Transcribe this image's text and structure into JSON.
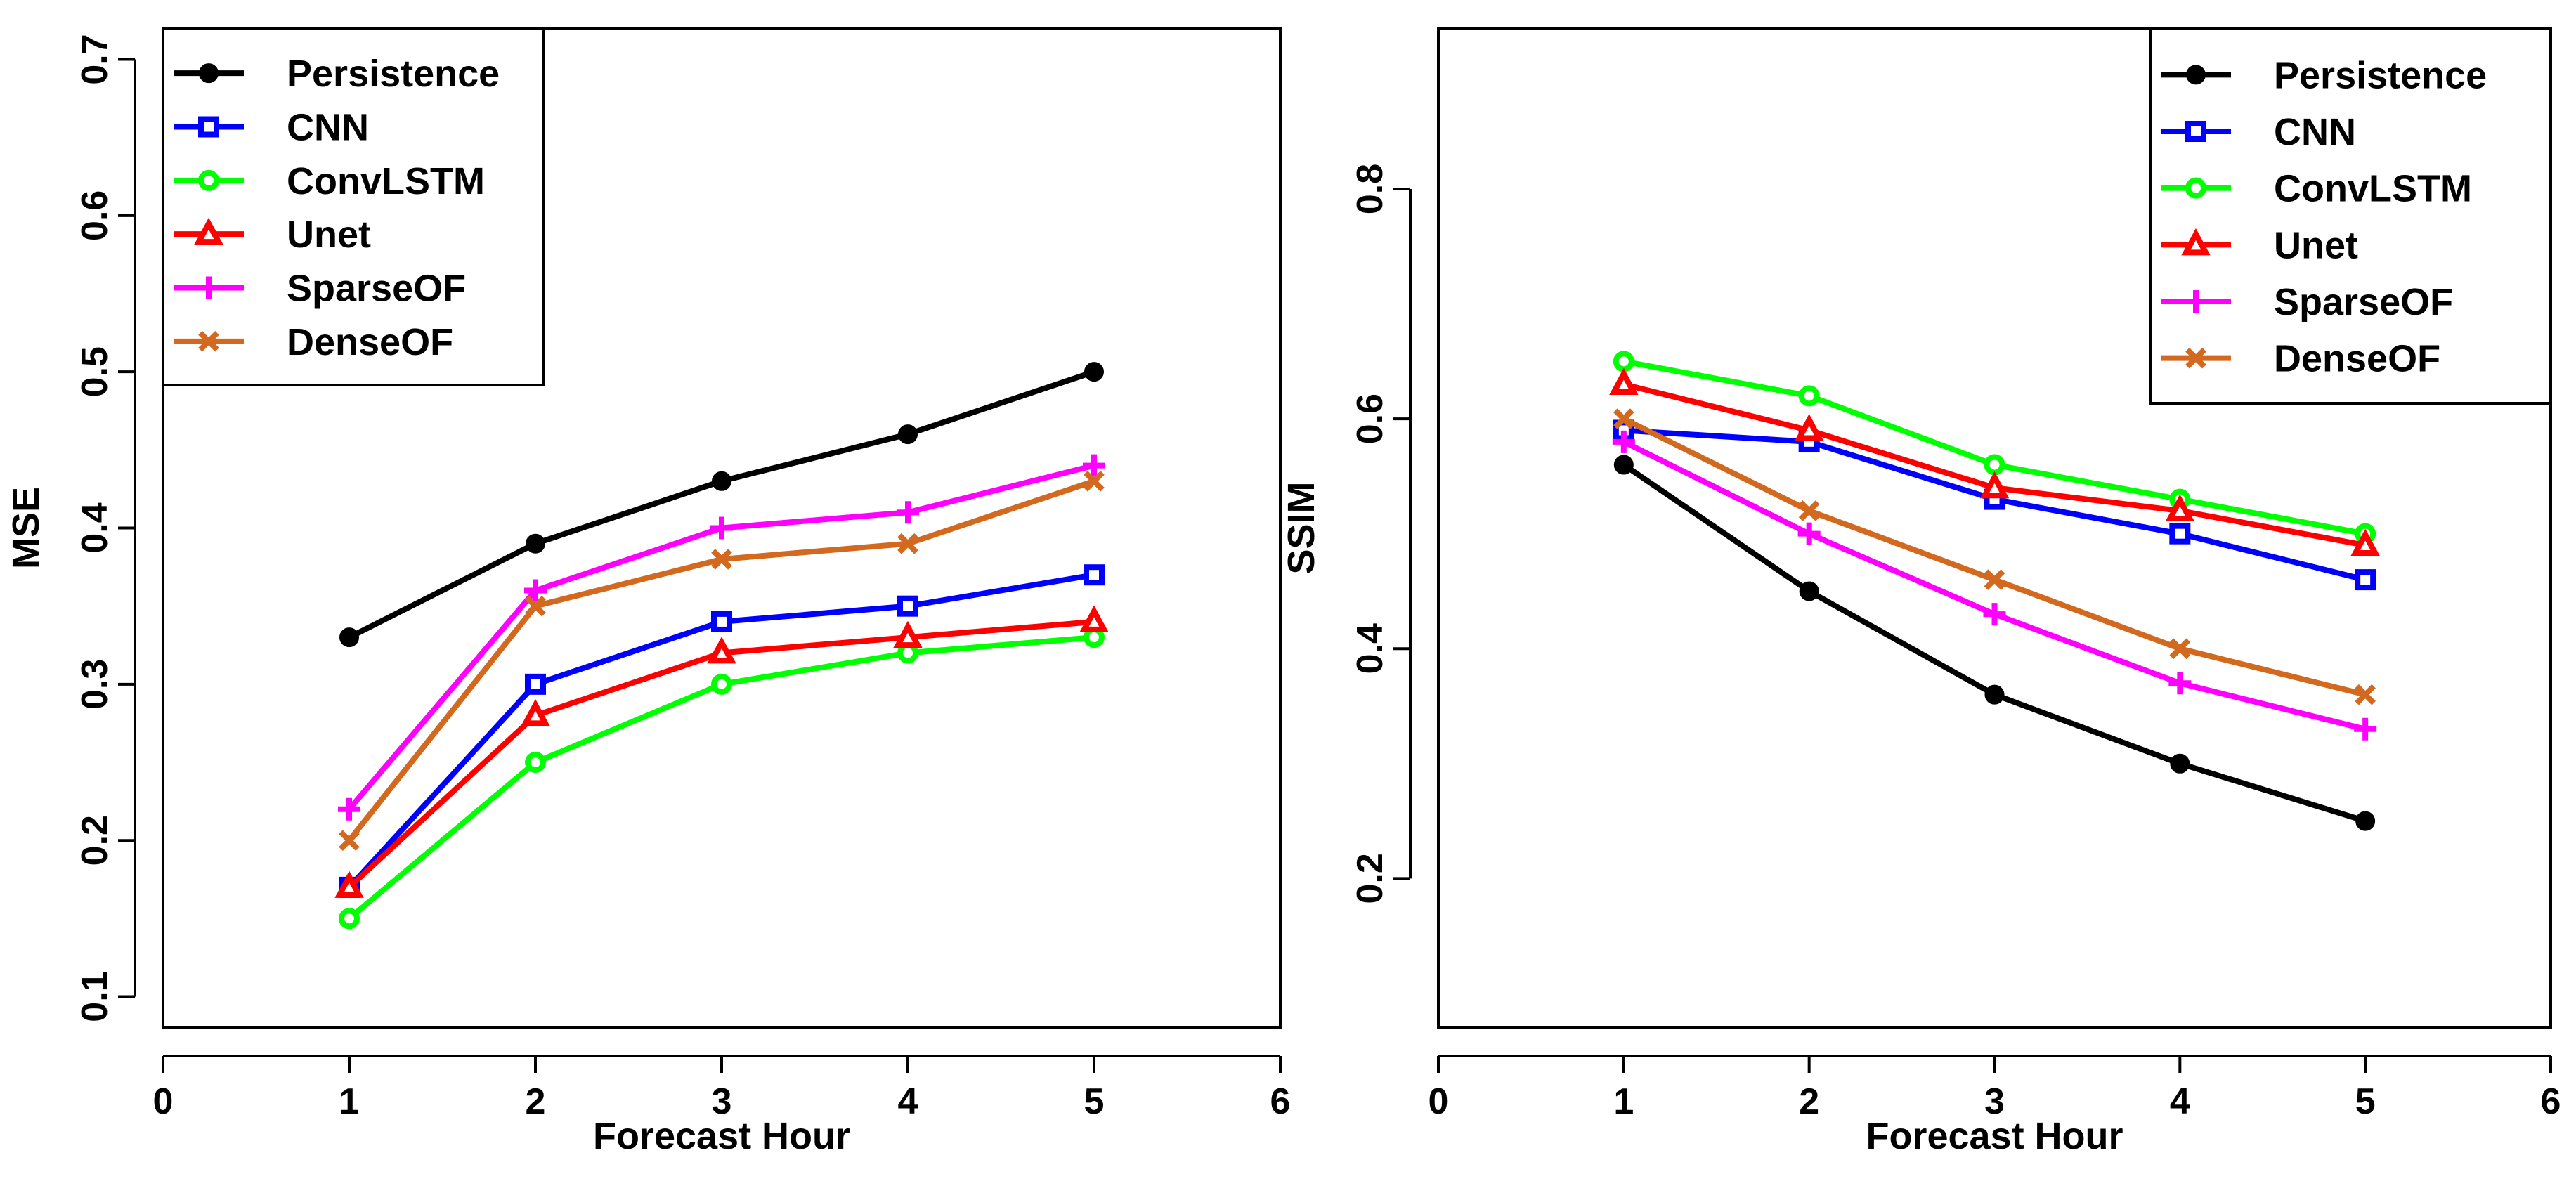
{
  "chart_data": [
    {
      "type": "line",
      "title": "",
      "xlabel": "Forecast Hour",
      "ylabel": "MSE",
      "xlim": [
        0,
        6
      ],
      "ylim": [
        0.08,
        0.72
      ],
      "xticks": [
        0,
        1,
        2,
        3,
        4,
        5,
        6
      ],
      "yticks": [
        0.1,
        0.2,
        0.3,
        0.4,
        0.5,
        0.6,
        0.7
      ],
      "grid": false,
      "legend_position": "top-left",
      "x": [
        1,
        2,
        3,
        4,
        5
      ],
      "series": [
        {
          "name": "Persistence",
          "color": "#000000",
          "marker": "filled-circle",
          "values": [
            0.33,
            0.39,
            0.43,
            0.46,
            0.5
          ]
        },
        {
          "name": "CNN",
          "color": "#0000FF",
          "marker": "square",
          "values": [
            0.17,
            0.3,
            0.34,
            0.35,
            0.37
          ]
        },
        {
          "name": "ConvLSTM",
          "color": "#00FF00",
          "marker": "circle",
          "values": [
            0.15,
            0.25,
            0.3,
            0.32,
            0.33
          ]
        },
        {
          "name": "Unet",
          "color": "#FF0000",
          "marker": "triangle",
          "values": [
            0.17,
            0.28,
            0.32,
            0.33,
            0.34
          ]
        },
        {
          "name": "SparseOF",
          "color": "#FF00FF",
          "marker": "plus",
          "values": [
            0.22,
            0.36,
            0.4,
            0.41,
            0.44
          ]
        },
        {
          "name": "DenseOF",
          "color": "#D2691E",
          "marker": "cross",
          "values": [
            0.2,
            0.35,
            0.38,
            0.39,
            0.43
          ]
        }
      ]
    },
    {
      "type": "line",
      "title": "",
      "xlabel": "Forecast Hour",
      "ylabel": "SSIM",
      "xlim": [
        0,
        6
      ],
      "ylim": [
        0.07,
        0.94
      ],
      "xticks": [
        0,
        1,
        2,
        3,
        4,
        5,
        6
      ],
      "yticks": [
        0.2,
        0.4,
        0.6,
        0.8
      ],
      "grid": false,
      "legend_position": "top-right",
      "x": [
        1,
        2,
        3,
        4,
        5
      ],
      "series": [
        {
          "name": "Persistence",
          "color": "#000000",
          "marker": "filled-circle",
          "values": [
            0.56,
            0.45,
            0.36,
            0.3,
            0.25
          ]
        },
        {
          "name": "CNN",
          "color": "#0000FF",
          "marker": "square",
          "values": [
            0.59,
            0.58,
            0.53,
            0.5,
            0.46
          ]
        },
        {
          "name": "ConvLSTM",
          "color": "#00FF00",
          "marker": "circle",
          "values": [
            0.65,
            0.62,
            0.56,
            0.53,
            0.5
          ]
        },
        {
          "name": "Unet",
          "color": "#FF0000",
          "marker": "triangle",
          "values": [
            0.63,
            0.59,
            0.54,
            0.52,
            0.49
          ]
        },
        {
          "name": "SparseOF",
          "color": "#FF00FF",
          "marker": "plus",
          "values": [
            0.58,
            0.5,
            0.43,
            0.37,
            0.33
          ]
        },
        {
          "name": "DenseOF",
          "color": "#D2691E",
          "marker": "cross",
          "values": [
            0.6,
            0.52,
            0.46,
            0.4,
            0.36
          ]
        }
      ]
    }
  ]
}
